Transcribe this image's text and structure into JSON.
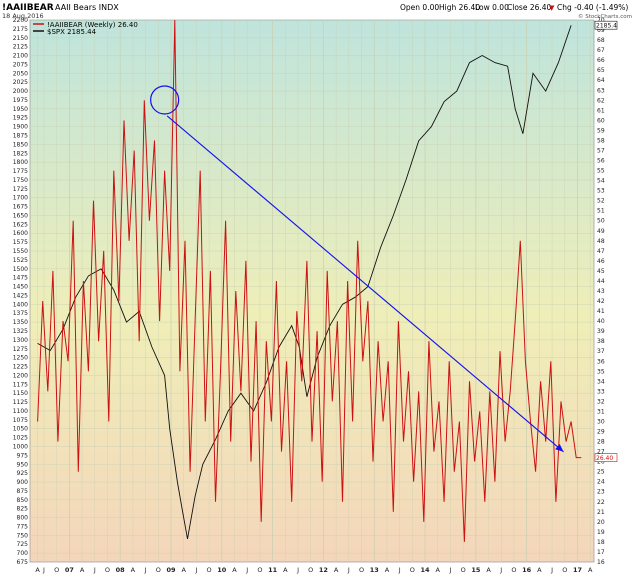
{
  "header": {
    "symbol": "!AAIIBEAR",
    "name": "AAII Bears  INDX",
    "date": "18 Aug 2016",
    "open": "Open 0.00",
    "high": "High 26.40",
    "low": "Low 0.00",
    "close": "Close 26.40",
    "chg": "Chg -0.40 (-1.49%)",
    "chg_arrow": "▼",
    "legend_primary": "!AAIIBEAR (Weekly) 26.40",
    "legend_secondary": "$SPX 2185.44",
    "credit": "© StockCharts.com"
  },
  "colors": {
    "bears_line": "#cc1111",
    "spx_line": "#111111",
    "trend_line": "#1111ee",
    "bg_top": "#bfe4dc",
    "bg_mid": "#efeeb8",
    "bg_bottom": "#f4d6bb",
    "grid": "#c8cfb0"
  },
  "chart_data": {
    "type": "line",
    "left_axis": {
      "min": 675,
      "max": 2200,
      "step": 25,
      "series": "$SPX"
    },
    "right_axis": {
      "min": 16,
      "max": 70,
      "step": 1,
      "series": "!AAIIBEAR"
    },
    "x_ticks": [
      {
        "label": "A",
        "t": 0.0
      },
      {
        "label": "J",
        "t": 0.125
      },
      {
        "label": "O",
        "t": 0.375
      },
      {
        "label": "07",
        "t": 0.625
      },
      {
        "label": "A",
        "t": 0.875
      },
      {
        "label": "J",
        "t": 1.125
      },
      {
        "label": "O",
        "t": 1.375
      },
      {
        "label": "08",
        "t": 1.625
      },
      {
        "label": "A",
        "t": 1.875
      },
      {
        "label": "J",
        "t": 2.125
      },
      {
        "label": "O",
        "t": 2.375
      },
      {
        "label": "09",
        "t": 2.625
      },
      {
        "label": "A",
        "t": 2.875
      },
      {
        "label": "J",
        "t": 3.125
      },
      {
        "label": "O",
        "t": 3.375
      },
      {
        "label": "10",
        "t": 3.625
      },
      {
        "label": "A",
        "t": 3.875
      },
      {
        "label": "J",
        "t": 4.125
      },
      {
        "label": "O",
        "t": 4.375
      },
      {
        "label": "11",
        "t": 4.625
      },
      {
        "label": "A",
        "t": 4.875
      },
      {
        "label": "J",
        "t": 5.125
      },
      {
        "label": "O",
        "t": 5.375
      },
      {
        "label": "12",
        "t": 5.625
      },
      {
        "label": "A",
        "t": 5.875
      },
      {
        "label": "J",
        "t": 6.125
      },
      {
        "label": "O",
        "t": 6.375
      },
      {
        "label": "13",
        "t": 6.625
      },
      {
        "label": "A",
        "t": 6.875
      },
      {
        "label": "J",
        "t": 7.125
      },
      {
        "label": "O",
        "t": 7.375
      },
      {
        "label": "14",
        "t": 7.625
      },
      {
        "label": "A",
        "t": 7.875
      },
      {
        "label": "J",
        "t": 8.125
      },
      {
        "label": "O",
        "t": 8.375
      },
      {
        "label": "15",
        "t": 8.625
      },
      {
        "label": "A",
        "t": 8.875
      },
      {
        "label": "J",
        "t": 9.125
      },
      {
        "label": "O",
        "t": 9.375
      },
      {
        "label": "16",
        "t": 9.625
      },
      {
        "label": "A",
        "t": 9.875
      },
      {
        "label": "J",
        "t": 10.125
      },
      {
        "label": "O",
        "t": 10.375
      },
      {
        "label": "17",
        "t": 10.625
      },
      {
        "label": "A",
        "t": 10.875
      }
    ],
    "series": [
      {
        "name": "$SPX",
        "axis": "left",
        "x": [
          0,
          0.25,
          0.5,
          0.75,
          1,
          1.25,
          1.5,
          1.75,
          2,
          2.25,
          2.5,
          2.6,
          2.75,
          2.85,
          2.95,
          3.1,
          3.25,
          3.5,
          3.75,
          4,
          4.25,
          4.5,
          4.75,
          5,
          5.15,
          5.3,
          5.5,
          5.75,
          6,
          6.25,
          6.5,
          6.75,
          7,
          7.25,
          7.5,
          7.75,
          8,
          8.25,
          8.5,
          8.75,
          9,
          9.25,
          9.4,
          9.55,
          9.75,
          10,
          10.25,
          10.5
        ],
        "values": [
          1290,
          1270,
          1330,
          1420,
          1480,
          1500,
          1440,
          1350,
          1380,
          1280,
          1200,
          1050,
          900,
          820,
          740,
          860,
          950,
          1020,
          1100,
          1150,
          1100,
          1180,
          1280,
          1340,
          1280,
          1140,
          1250,
          1340,
          1400,
          1420,
          1450,
          1560,
          1650,
          1750,
          1860,
          1900,
          1970,
          2000,
          2080,
          2100,
          2080,
          2070,
          1950,
          1880,
          2050,
          2000,
          2080,
          2185
        ]
      },
      {
        "name": "!AAIIBEAR",
        "axis": "right",
        "x": [
          0,
          0.1,
          0.2,
          0.3,
          0.4,
          0.5,
          0.6,
          0.7,
          0.8,
          0.9,
          1,
          1.1,
          1.2,
          1.3,
          1.4,
          1.5,
          1.6,
          1.7,
          1.8,
          1.9,
          2,
          2.1,
          2.2,
          2.3,
          2.4,
          2.5,
          2.6,
          2.7,
          2.8,
          2.9,
          3,
          3.1,
          3.2,
          3.3,
          3.4,
          3.5,
          3.6,
          3.7,
          3.8,
          3.9,
          4,
          4.1,
          4.2,
          4.3,
          4.4,
          4.5,
          4.6,
          4.7,
          4.8,
          4.9,
          5,
          5.1,
          5.2,
          5.3,
          5.4,
          5.5,
          5.6,
          5.7,
          5.8,
          5.9,
          6,
          6.1,
          6.2,
          6.3,
          6.4,
          6.5,
          6.6,
          6.7,
          6.8,
          6.9,
          7,
          7.1,
          7.2,
          7.3,
          7.4,
          7.5,
          7.6,
          7.7,
          7.8,
          7.9,
          8,
          8.1,
          8.2,
          8.3,
          8.4,
          8.5,
          8.6,
          8.7,
          8.8,
          8.9,
          9,
          9.1,
          9.2,
          9.3,
          9.4,
          9.5,
          9.6,
          9.7,
          9.8,
          9.9,
          10,
          10.1,
          10.2,
          10.3,
          10.4,
          10.5,
          10.6,
          10.7
        ],
        "values": [
          30,
          42,
          33,
          45,
          28,
          40,
          36,
          50,
          25,
          44,
          35,
          52,
          38,
          47,
          30,
          55,
          42,
          60,
          48,
          57,
          38,
          62,
          50,
          58,
          40,
          55,
          45,
          70,
          35,
          48,
          25,
          40,
          55,
          30,
          45,
          22,
          35,
          50,
          28,
          43,
          33,
          46,
          26,
          40,
          20,
          38,
          30,
          44,
          27,
          36,
          22,
          41,
          34,
          46,
          28,
          39,
          24,
          45,
          32,
          40,
          22,
          44,
          30,
          48,
          36,
          42,
          26,
          38,
          30,
          36,
          21,
          40,
          28,
          35,
          24,
          33,
          20,
          38,
          27,
          32,
          22,
          36,
          25,
          30,
          18,
          34,
          26,
          31,
          22,
          33,
          24,
          37,
          28,
          33,
          40,
          48,
          36,
          30,
          25,
          34,
          28,
          36,
          22,
          32,
          28,
          30,
          26.4,
          26.4
        ]
      }
    ],
    "annotations": [
      {
        "type": "circle",
        "anchor": {
          "t": 2.5,
          "spx": 1975
        }
      },
      {
        "type": "arrow",
        "from": {
          "t": 2.55,
          "spx": 1930
        },
        "to": {
          "t": 10.35,
          "spx": 985
        }
      }
    ],
    "last_value_badges": [
      {
        "axis": "right",
        "value": "2185.4",
        "at": 2185.4
      },
      {
        "axis": "right",
        "value": "26.40",
        "at": 26.4
      }
    ]
  }
}
